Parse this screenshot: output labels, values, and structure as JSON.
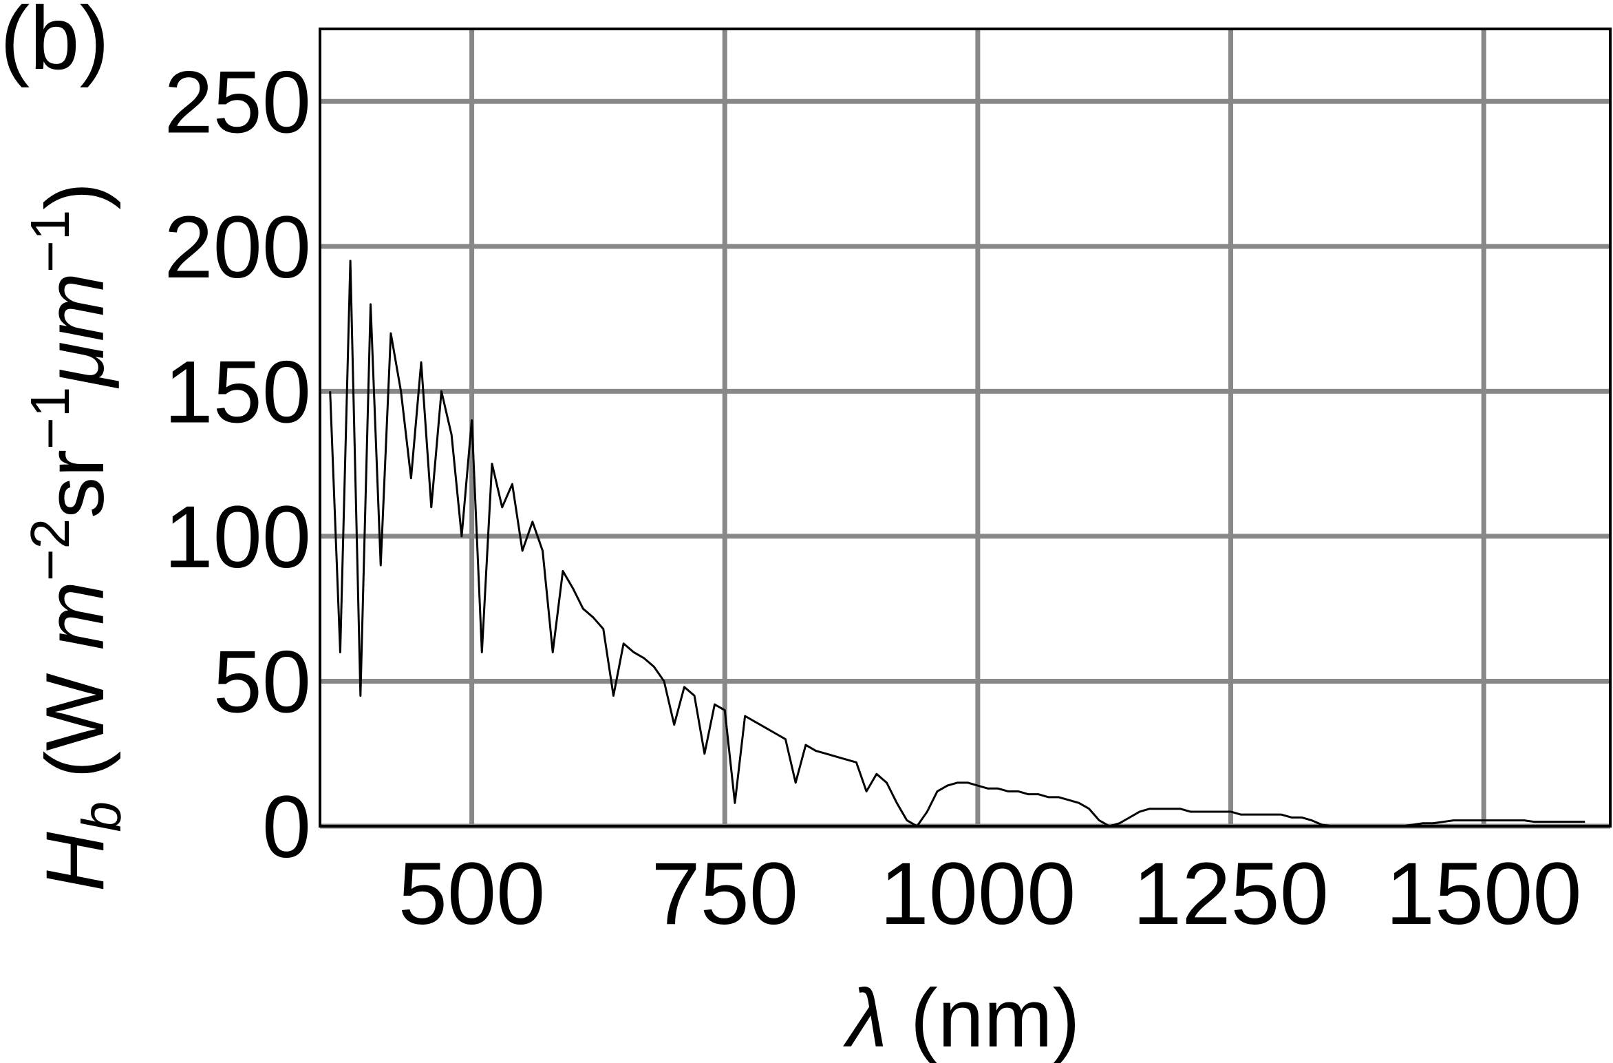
{
  "chart_data": {
    "type": "line",
    "annotation": "(b)",
    "xlabel": [
      "λ",
      " (nm)"
    ],
    "ylabel": [
      "H",
      "b",
      " (W ",
      "m",
      "−2",
      "sr",
      "−1",
      "μm",
      "−1",
      ")"
    ],
    "x": [
      360,
      370,
      380,
      390,
      400,
      410,
      420,
      430,
      440,
      450,
      460,
      470,
      480,
      490,
      500,
      510,
      520,
      530,
      540,
      550,
      560,
      570,
      580,
      590,
      600,
      610,
      620,
      630,
      640,
      650,
      660,
      670,
      680,
      690,
      700,
      710,
      720,
      730,
      740,
      750,
      760,
      770,
      780,
      790,
      800,
      810,
      820,
      830,
      840,
      850,
      860,
      870,
      880,
      890,
      900,
      910,
      920,
      930,
      940,
      950,
      960,
      970,
      980,
      990,
      1000,
      1010,
      1020,
      1030,
      1040,
      1050,
      1060,
      1070,
      1080,
      1090,
      1100,
      1110,
      1120,
      1130,
      1140,
      1150,
      1160,
      1170,
      1180,
      1190,
      1200,
      1210,
      1220,
      1230,
      1240,
      1250,
      1260,
      1270,
      1280,
      1290,
      1300,
      1310,
      1320,
      1330,
      1340,
      1350,
      1360,
      1370,
      1380,
      1390,
      1400,
      1410,
      1420,
      1430,
      1440,
      1450,
      1460,
      1470,
      1480,
      1490,
      1500,
      1510,
      1520,
      1530,
      1540,
      1550,
      1560,
      1570,
      1580,
      1590,
      1600
    ],
    "values": [
      150,
      60,
      195,
      45,
      180,
      90,
      170,
      150,
      120,
      160,
      110,
      150,
      135,
      100,
      140,
      60,
      125,
      110,
      118,
      95,
      105,
      95,
      60,
      88,
      82,
      75,
      72,
      68,
      45,
      63,
      60,
      58,
      55,
      50,
      35,
      48,
      45,
      25,
      42,
      40,
      8,
      38,
      36,
      34,
      32,
      30,
      15,
      28,
      26,
      25,
      24,
      23,
      22,
      12,
      18,
      15,
      8,
      2,
      0,
      5,
      12,
      14,
      15,
      15,
      14,
      13,
      13,
      12,
      12,
      11,
      11,
      10,
      10,
      9,
      8,
      6,
      2,
      0,
      1,
      3,
      5,
      6,
      6,
      6,
      6,
      5,
      5,
      5,
      5,
      5,
      4,
      4,
      4,
      4,
      4,
      3,
      3,
      2,
      0.5,
      0,
      0,
      0,
      0,
      0,
      0,
      0,
      0,
      0.5,
      1,
      1,
      1.5,
      2,
      2,
      2,
      2,
      2,
      2,
      2,
      2,
      1.5,
      1.5,
      1.5,
      1.5,
      1.5,
      1.5
    ],
    "color": "#000000",
    "xlim": [
      350,
      1625
    ],
    "xticks": [
      500,
      750,
      1000,
      1250,
      1500
    ],
    "ylim": [
      0,
      275
    ],
    "yticks": [
      0,
      50,
      100,
      150,
      200,
      250
    ],
    "grid": true,
    "grid_color": "#888888"
  }
}
